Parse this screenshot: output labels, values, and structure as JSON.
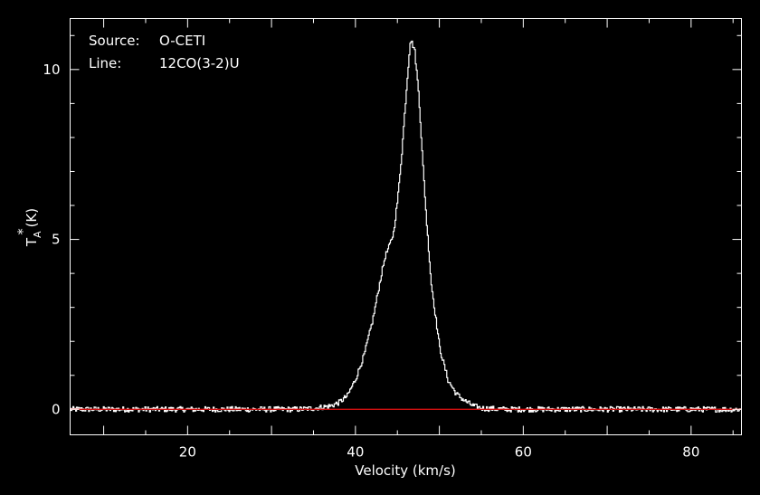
{
  "info": {
    "source_label": "Source:",
    "source_value": "O-CETI",
    "line_label": "Line:",
    "line_value": "12CO(3-2)U"
  },
  "colors": {
    "background": "#000000",
    "axes": "#ffffff",
    "spectrum": "#ffffff",
    "baseline": "#d01010"
  },
  "chart_data": {
    "type": "line",
    "xlabel": "Velocity (km/s)",
    "ylabel": "T*A (K)",
    "ylabel_main": "T",
    "ylabel_sup": "*",
    "ylabel_sub": "A",
    "ylabel_unit": "(K)",
    "xlim": [
      6,
      86
    ],
    "ylim": [
      -0.75,
      11.5
    ],
    "xticks": [
      20,
      40,
      60,
      80
    ],
    "yticks": [
      0,
      5,
      10
    ],
    "grid": false,
    "series": [
      {
        "style": "histogram",
        "color": "#ffffff",
        "x": [
          6,
          10,
          15,
          20,
          25,
          30,
          33,
          35,
          37,
          38,
          39,
          40,
          41,
          42,
          43,
          43.5,
          44,
          44.5,
          45,
          45.5,
          46,
          46.5,
          47,
          47.5,
          48,
          48.5,
          49,
          50,
          51,
          52,
          53,
          54,
          55,
          58,
          62,
          66,
          70,
          75,
          80,
          86
        ],
        "y": [
          0,
          0,
          0,
          0,
          0,
          0,
          0,
          0.03,
          0.1,
          0.2,
          0.4,
          0.9,
          1.6,
          2.6,
          3.9,
          4.5,
          4.8,
          5.2,
          6.2,
          7.6,
          9.3,
          10.9,
          10.6,
          9.3,
          7.2,
          5.3,
          3.7,
          1.8,
          0.85,
          0.45,
          0.25,
          0.1,
          0.03,
          0,
          0,
          0,
          0,
          0,
          0,
          0
        ],
        "noise_rms": 0.05
      },
      {
        "style": "line",
        "color": "#d01010",
        "x": [
          6,
          86
        ],
        "y": [
          0,
          0
        ]
      }
    ]
  }
}
